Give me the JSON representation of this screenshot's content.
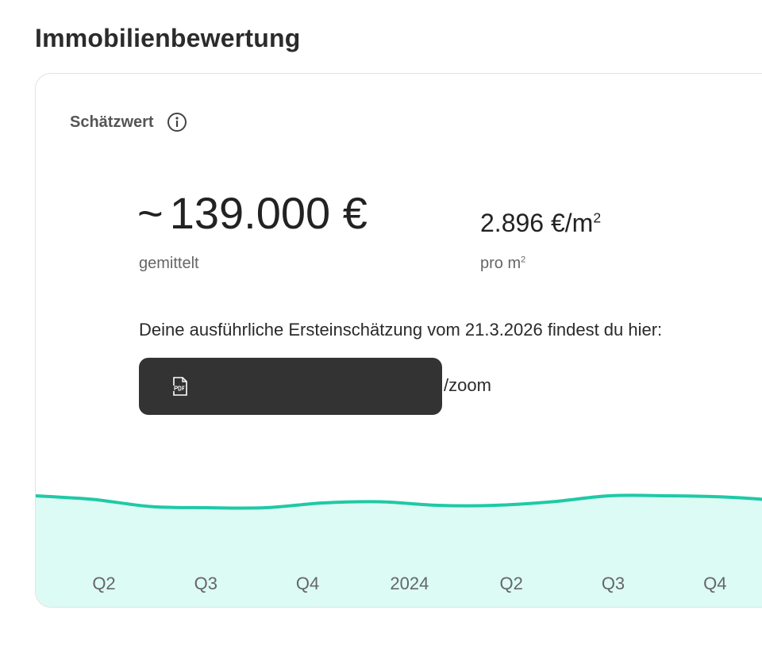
{
  "page": {
    "title": "Immobilienbewertung"
  },
  "card": {
    "label": "Schätzwert",
    "info_icon": "info-icon",
    "estimate": {
      "tilde": "~",
      "value": "139.000 €",
      "caption": "gemittelt"
    },
    "per_sqm": {
      "value": "2.896 €/m",
      "value_sup": "2",
      "caption": "pro m",
      "caption_sup": "2"
    },
    "report": {
      "text": "Deine ausführliche Ersteinschätzung vom 21.3.2026 findest du hier:",
      "pdf_icon": "pdf-file-icon",
      "suffix": "/zoom"
    }
  },
  "colors": {
    "line": "#1fc9a6",
    "area": "#dcfbf4",
    "button_bg": "#333333"
  },
  "chart_data": {
    "type": "area",
    "x_tick_labels": [
      "Q2",
      "Q3",
      "Q4",
      "2024",
      "Q2",
      "Q3",
      "Q4"
    ],
    "y_relative": [
      0.92,
      0.89,
      0.83,
      0.82,
      0.82,
      0.86,
      0.87,
      0.84,
      0.84,
      0.87,
      0.92,
      0.92,
      0.91,
      0.88
    ],
    "grid": false
  }
}
